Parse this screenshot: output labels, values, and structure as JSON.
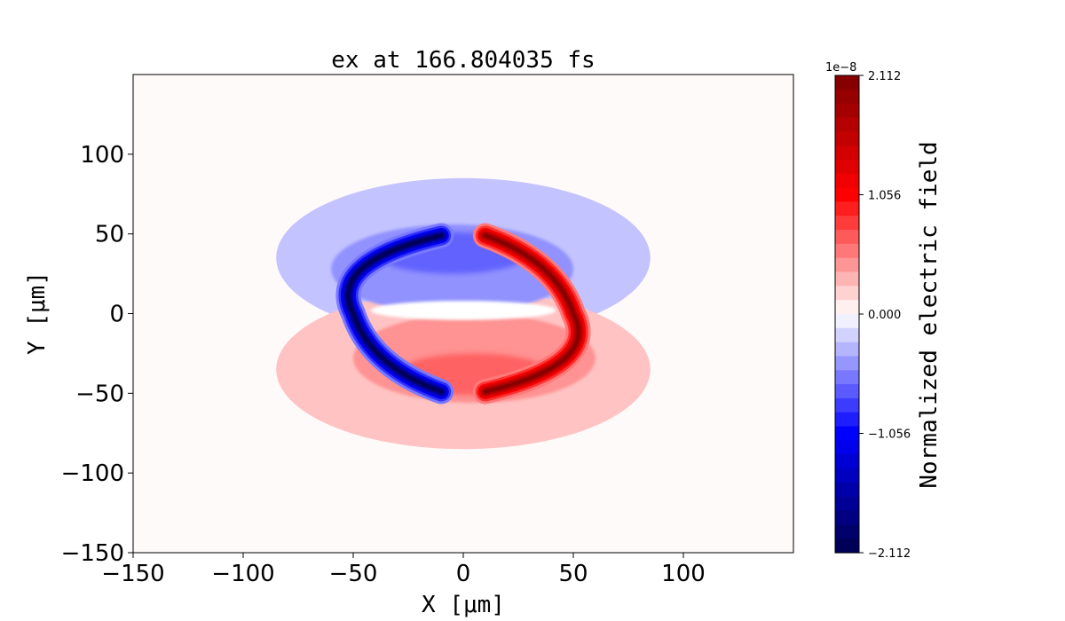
{
  "chart_data": {
    "type": "heatmap",
    "title": "ex at 166.804035 fs",
    "xlabel": "X [μm]",
    "ylabel": "Y [μm]",
    "xlim": [
      -150,
      150
    ],
    "ylim": [
      -150,
      150
    ],
    "x_ticks": [
      -150,
      -100,
      -50,
      0,
      50,
      100
    ],
    "x_tick_labels": [
      "−150",
      "−100",
      "−50",
      "0",
      "50",
      "100"
    ],
    "y_ticks": [
      -150,
      -100,
      -50,
      0,
      50,
      100
    ],
    "y_tick_labels": [
      "−150",
      "−100",
      "−50",
      "0",
      "50",
      "100"
    ],
    "grid": false,
    "colorbar": {
      "label": "Normalized electric field",
      "offset_text": "1e−8",
      "min": -2.112,
      "max": 2.112,
      "levels": 34,
      "ticks": [
        2.112,
        1.056,
        0.0,
        -1.056,
        -2.112
      ],
      "tick_labels": [
        "2.112",
        "1.056",
        "0.000",
        "−1.056",
        "−2.112"
      ],
      "colormap": "seismic",
      "colors": {
        "negative": "#0000ff",
        "zero": "#ffffff",
        "positive": "#ff0000",
        "neg_end": "#00004c",
        "pos_end": "#800000"
      }
    },
    "field_structures": [
      {
        "name": "negative-crescent",
        "x": -47,
        "y": 0,
        "value": -2.0
      },
      {
        "name": "positive-crescent",
        "x": 47,
        "y": 0,
        "value": 2.0
      },
      {
        "name": "upper-lobe",
        "x": 0,
        "y": 35,
        "value": -0.3
      },
      {
        "name": "lower-lobe",
        "x": 0,
        "y": -35,
        "value": 0.3
      }
    ]
  }
}
